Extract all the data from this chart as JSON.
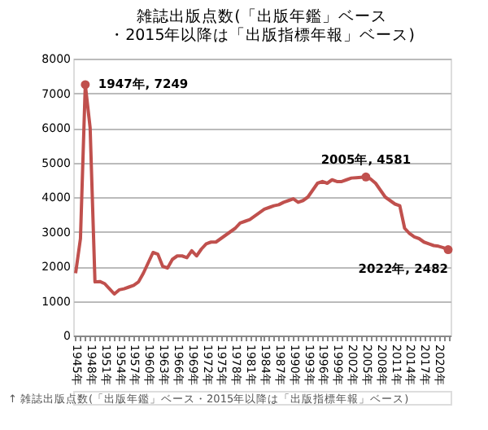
{
  "chart_data": {
    "type": "line",
    "title": [
      "雑誌出版点数(「出版年鑑」ベース",
      "・2015年以降は「出版指標年報」ベース)"
    ],
    "x": [
      1945,
      1946,
      1947,
      1948,
      1949,
      1950,
      1951,
      1952,
      1953,
      1954,
      1955,
      1956,
      1957,
      1958,
      1959,
      1960,
      1961,
      1962,
      1963,
      1964,
      1965,
      1966,
      1967,
      1968,
      1969,
      1970,
      1971,
      1972,
      1973,
      1974,
      1975,
      1976,
      1977,
      1978,
      1979,
      1980,
      1981,
      1982,
      1983,
      1984,
      1985,
      1986,
      1987,
      1988,
      1989,
      1990,
      1991,
      1992,
      1993,
      1994,
      1995,
      1996,
      1997,
      1998,
      1999,
      2000,
      2001,
      2002,
      2003,
      2004,
      2005,
      2006,
      2007,
      2008,
      2009,
      2010,
      2011,
      2012,
      2013,
      2014,
      2015,
      2016,
      2017,
      2018,
      2019,
      2020,
      2021,
      2022
    ],
    "series": [
      {
        "color": "#c0504d",
        "values": [
          1800,
          2800,
          7249,
          6000,
          1550,
          1560,
          1500,
          1350,
          1200,
          1320,
          1350,
          1400,
          1450,
          1550,
          1800,
          2100,
          2400,
          2350,
          2000,
          1950,
          2200,
          2300,
          2300,
          2250,
          2450,
          2300,
          2500,
          2650,
          2700,
          2700,
          2800,
          2900,
          3000,
          3100,
          3250,
          3300,
          3350,
          3450,
          3550,
          3650,
          3700,
          3750,
          3780,
          3850,
          3900,
          3950,
          3850,
          3900,
          4000,
          4200,
          4400,
          4450,
          4400,
          4500,
          4450,
          4450,
          4500,
          4550,
          4560,
          4570,
          4581,
          4520,
          4400,
          4200,
          4000,
          3900,
          3800,
          3750,
          3100,
          2950,
          2850,
          2800,
          2700,
          2650,
          2600,
          2580,
          2540,
          2482
        ]
      }
    ],
    "marker": "none",
    "line_style": "solid",
    "grid": "y",
    "ylim": [
      0,
      8000
    ],
    "yticks": [
      0,
      1000,
      2000,
      3000,
      4000,
      5000,
      6000,
      7000,
      8000
    ],
    "xlim": [
      1944.5,
      2022.5
    ],
    "xticks": [
      {
        "value": 1945,
        "label": "1945年"
      },
      {
        "value": 1946,
        "label": null
      },
      {
        "value": 1947,
        "label": null
      },
      {
        "value": 1948,
        "label": "1948年"
      },
      {
        "value": 1949,
        "label": null
      },
      {
        "value": 1950,
        "label": null
      },
      {
        "value": 1951,
        "label": "1951年"
      },
      {
        "value": 1952,
        "label": null
      },
      {
        "value": 1953,
        "label": null
      },
      {
        "value": 1954,
        "label": "1954年"
      },
      {
        "value": 1955,
        "label": null
      },
      {
        "value": 1956,
        "label": null
      },
      {
        "value": 1957,
        "label": "1957年"
      },
      {
        "value": 1958,
        "label": null
      },
      {
        "value": 1959,
        "label": null
      },
      {
        "value": 1960,
        "label": "1960年"
      },
      {
        "value": 1961,
        "label": null
      },
      {
        "value": 1962,
        "label": null
      },
      {
        "value": 1963,
        "label": "1963年"
      },
      {
        "value": 1964,
        "label": null
      },
      {
        "value": 1965,
        "label": null
      },
      {
        "value": 1966,
        "label": "1966年"
      },
      {
        "value": 1967,
        "label": null
      },
      {
        "value": 1968,
        "label": null
      },
      {
        "value": 1969,
        "label": "1969年"
      },
      {
        "value": 1970,
        "label": null
      },
      {
        "value": 1971,
        "label": null
      },
      {
        "value": 1972,
        "label": "1972年"
      },
      {
        "value": 1973,
        "label": null
      },
      {
        "value": 1974,
        "label": null
      },
      {
        "value": 1975,
        "label": "1975年"
      },
      {
        "value": 1976,
        "label": null
      },
      {
        "value": 1977,
        "label": null
      },
      {
        "value": 1978,
        "label": "1978年"
      },
      {
        "value": 1979,
        "label": null
      },
      {
        "value": 1980,
        "label": null
      },
      {
        "value": 1981,
        "label": "1981年"
      },
      {
        "value": 1982,
        "label": null
      },
      {
        "value": 1983,
        "label": null
      },
      {
        "value": 1984,
        "label": "1984年"
      },
      {
        "value": 1985,
        "label": null
      },
      {
        "value": 1986,
        "label": null
      },
      {
        "value": 1987,
        "label": "1987年"
      },
      {
        "value": 1988,
        "label": null
      },
      {
        "value": 1989,
        "label": null
      },
      {
        "value": 1990,
        "label": "1990年"
      },
      {
        "value": 1991,
        "label": null
      },
      {
        "value": 1992,
        "label": null
      },
      {
        "value": 1993,
        "label": "1993年"
      },
      {
        "value": 1994,
        "label": null
      },
      {
        "value": 1995,
        "label": null
      },
      {
        "value": 1996,
        "label": "1996年"
      },
      {
        "value": 1997,
        "label": null
      },
      {
        "value": 1998,
        "label": null
      },
      {
        "value": 1999,
        "label": "1999年"
      },
      {
        "value": 2000,
        "label": null
      },
      {
        "value": 2001,
        "label": null
      },
      {
        "value": 2002,
        "label": "2002年"
      },
      {
        "value": 2003,
        "label": null
      },
      {
        "value": 2004,
        "label": null
      },
      {
        "value": 2005,
        "label": "2005年"
      },
      {
        "value": 2006,
        "label": null
      },
      {
        "value": 2007,
        "label": null
      },
      {
        "value": 2008,
        "label": "2008年"
      },
      {
        "value": 2009,
        "label": null
      },
      {
        "value": 2010,
        "label": null
      },
      {
        "value": 2011,
        "label": "2011年"
      },
      {
        "value": 2012,
        "label": null
      },
      {
        "value": 2013,
        "label": null
      },
      {
        "value": 2014,
        "label": "2014年"
      },
      {
        "value": 2015,
        "label": null
      },
      {
        "value": 2016,
        "label": null
      },
      {
        "value": 2017,
        "label": "2017年"
      },
      {
        "value": 2018,
        "label": null
      },
      {
        "value": 2019,
        "label": null
      },
      {
        "value": 2020,
        "label": "2020年"
      },
      {
        "value": 2021,
        "label": null
      },
      {
        "value": 2022,
        "label": null
      }
    ],
    "annotations": [
      {
        "text": "1947年, 7249",
        "x": 1947,
        "y": 7249
      },
      {
        "text": "2005年, 4581",
        "x": 2005,
        "y": 4581
      },
      {
        "text": "2022年, 2482",
        "x": 2022,
        "y": 2482
      },
      "↑ 雑誌出版点数(「出版年鑑」ベース・2015年以降は「出版指標年報」ベース)"
    ]
  }
}
